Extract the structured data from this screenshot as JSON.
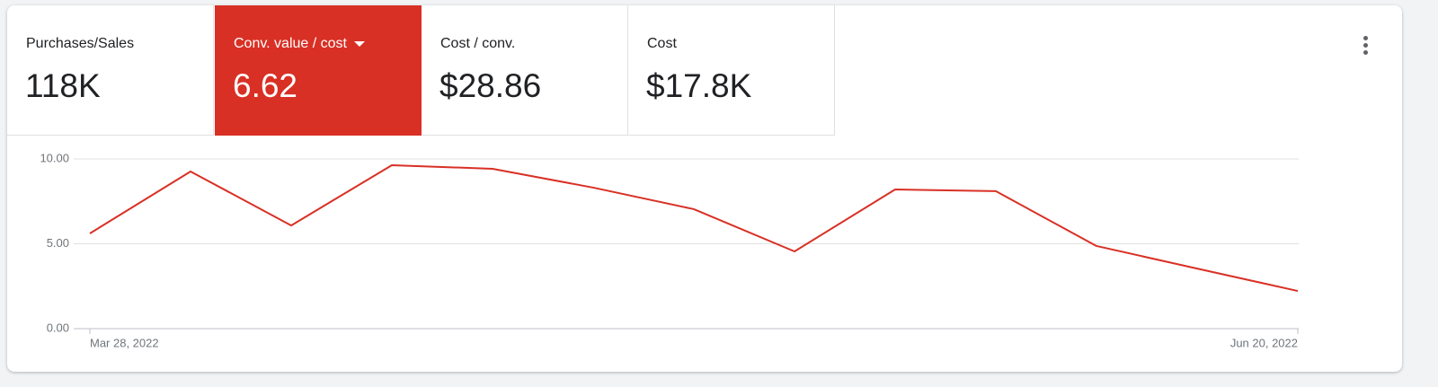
{
  "tabs": [
    {
      "label": "Purchases/Sales",
      "value": "118K"
    },
    {
      "label": "Conv. value / cost",
      "value": "6.62"
    },
    {
      "label": "Cost / conv.",
      "value": "$28.86"
    },
    {
      "label": "Cost",
      "value": "$17.8K"
    }
  ],
  "chart_data": {
    "type": "line",
    "color": "#d93025",
    "categories": [
      "Mar 28, 2022",
      null,
      null,
      null,
      null,
      null,
      null,
      null,
      null,
      null,
      null,
      null,
      "Jun 20, 2022"
    ],
    "values": [
      5.61,
      9.26,
      6.08,
      9.63,
      9.42,
      8.31,
      7.04,
      4.55,
      8.2,
      8.1,
      4.87,
      3.54,
      2.22
    ],
    "ylim": [
      0,
      10
    ],
    "yticks": [
      {
        "value": 0,
        "label": "0.00"
      },
      {
        "value": 5,
        "label": "5.00"
      },
      {
        "value": 10,
        "label": "10.00"
      }
    ],
    "grid": true
  }
}
